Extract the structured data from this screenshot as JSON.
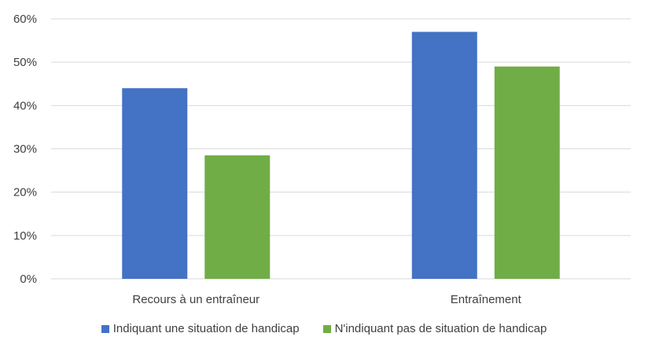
{
  "chart_data": {
    "type": "bar",
    "categories": [
      "Recours à un entraîneur",
      "Entraînement"
    ],
    "series": [
      {
        "name": "Indiquant une situation de handicap",
        "values": [
          0.44,
          0.57
        ],
        "color": "#4472C4"
      },
      {
        "name": "N'indiquant pas de situation de handicap",
        "values": [
          0.285,
          0.49
        ],
        "color": "#70AD47"
      }
    ],
    "ylim": [
      0,
      0.6
    ],
    "yticks": [
      0,
      0.1,
      0.2,
      0.3,
      0.4,
      0.5,
      0.6
    ],
    "ytick_labels": [
      "0%",
      "10%",
      "20%",
      "30%",
      "40%",
      "50%",
      "60%"
    ],
    "grid": true,
    "grid_color": "#D9D9D9",
    "legend_position": "bottom",
    "title": "",
    "xlabel": "",
    "ylabel": ""
  }
}
